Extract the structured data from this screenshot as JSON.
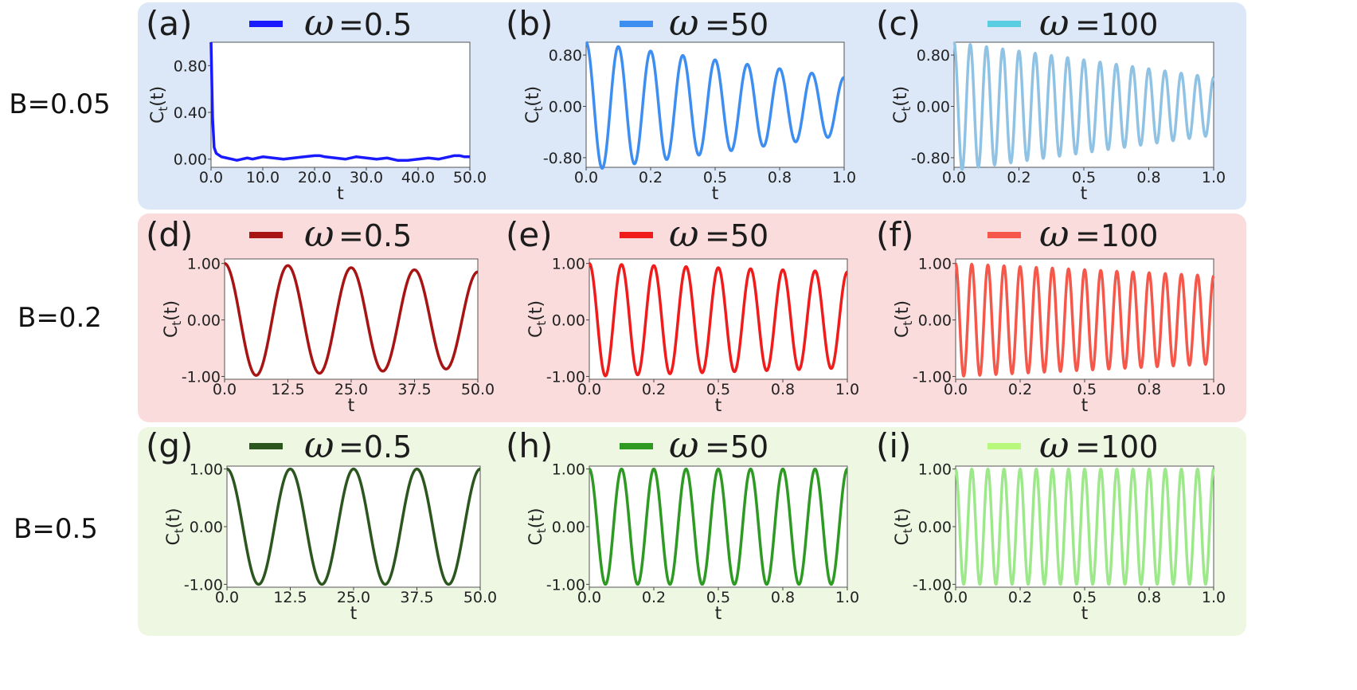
{
  "chart_data": [
    {
      "type": "line",
      "panel_label": "(a)",
      "row": 0,
      "col": 0,
      "legend_symbol": "ω",
      "legend_value": "=0.5",
      "ylabel": "C_t(t)",
      "xlabel": "t",
      "xlim": [
        0,
        50
      ],
      "ylim": [
        -0.07,
        1.0
      ],
      "xticks": [
        "0.0",
        "10.0",
        "20.0",
        "30.0",
        "40.0",
        "50.0"
      ],
      "yticks": [
        "0.00",
        "0.40",
        "0.80"
      ],
      "series": [
        {
          "color": "#1a1aff",
          "x": [
            0,
            0.3,
            0.6,
            1,
            2,
            3,
            4,
            5,
            6,
            7,
            8,
            9,
            10,
            12,
            14,
            16,
            18,
            20,
            21,
            22,
            24,
            26,
            28,
            30,
            32,
            34,
            36,
            38,
            40,
            42,
            44,
            46,
            47,
            48,
            49,
            50
          ],
          "y": [
            1.0,
            0.35,
            0.1,
            0.05,
            0.02,
            0.01,
            0.0,
            -0.01,
            0.0,
            0.01,
            0.0,
            0.01,
            0.02,
            0.01,
            0.0,
            0.01,
            0.02,
            0.03,
            0.03,
            0.02,
            0.01,
            0.0,
            0.02,
            0.01,
            0.0,
            0.01,
            -0.01,
            -0.01,
            0.0,
            0.01,
            0.0,
            0.02,
            0.03,
            0.03,
            0.02,
            0.02
          ]
        }
      ]
    },
    {
      "type": "line",
      "panel_label": "(b)",
      "row": 0,
      "col": 1,
      "legend_symbol": "ω",
      "legend_value": "=50",
      "ylabel": "C_t(t)",
      "xlabel": "t",
      "xlim": [
        0,
        1
      ],
      "ylim": [
        -0.95,
        1.0
      ],
      "xticks": [
        "0.0",
        "0.2",
        "0.5",
        "0.8",
        "1.0"
      ],
      "yticks": [
        "-0.80",
        "0.00",
        "0.80"
      ],
      "series": [
        {
          "color": "#3d8ef0",
          "frequency": 8,
          "amp_start": 1.0,
          "amp_end": 0.45,
          "offset": 0
        }
      ]
    },
    {
      "type": "line",
      "panel_label": "(c)",
      "row": 0,
      "col": 2,
      "legend_symbol": "ω",
      "legend_value": "=100",
      "ylabel": "C_t(t)",
      "xlabel": "t",
      "xlim": [
        0,
        1
      ],
      "ylim": [
        -0.95,
        1.0
      ],
      "xticks": [
        "0.0",
        "0.2",
        "0.5",
        "0.8",
        "1.0"
      ],
      "yticks": [
        "-0.80",
        "0.00",
        "0.80"
      ],
      "series": [
        {
          "color": "#90c2e4",
          "legend_color": "#5bcde0",
          "frequency": 16,
          "amp_start": 1.0,
          "amp_end": 0.45,
          "offset": 0
        }
      ]
    },
    {
      "type": "line",
      "panel_label": "(d)",
      "row": 1,
      "col": 0,
      "legend_symbol": "ω",
      "legend_value": "=0.5",
      "ylabel": "C_t(t)",
      "xlabel": "t",
      "xlim": [
        0,
        50
      ],
      "ylim": [
        -1.05,
        1.08
      ],
      "xticks": [
        "0.0",
        "12.5",
        "25.0",
        "37.5",
        "50.0"
      ],
      "yticks": [
        "-1.00",
        "0.00",
        "1.00"
      ],
      "series": [
        {
          "color": "#a81414",
          "frequency": 0.08,
          "amp_start": 1.0,
          "amp_end": 0.85,
          "offset": 0
        }
      ]
    },
    {
      "type": "line",
      "panel_label": "(e)",
      "row": 1,
      "col": 1,
      "legend_symbol": "ω",
      "legend_value": "=50",
      "ylabel": "C_t(t)",
      "xlabel": "t",
      "xlim": [
        0,
        1
      ],
      "ylim": [
        -1.05,
        1.08
      ],
      "xticks": [
        "0.0",
        "0.2",
        "0.5",
        "0.8",
        "1.0"
      ],
      "yticks": [
        "-1.00",
        "0.00",
        "1.00"
      ],
      "series": [
        {
          "color": "#f01c1c",
          "frequency": 8,
          "amp_start": 1.0,
          "amp_end": 0.85,
          "offset": 0
        }
      ]
    },
    {
      "type": "line",
      "panel_label": "(f)",
      "row": 1,
      "col": 2,
      "legend_symbol": "ω",
      "legend_value": "=100",
      "ylabel": "C_t(t)",
      "xlabel": "t",
      "xlim": [
        0,
        1
      ],
      "ylim": [
        -1.05,
        1.08
      ],
      "xticks": [
        "0.0",
        "0.2",
        "0.5",
        "0.8",
        "1.0"
      ],
      "yticks": [
        "-1.00",
        "0.00",
        "1.00"
      ],
      "series": [
        {
          "color": "#f5584a",
          "frequency": 16,
          "amp_start": 1.0,
          "amp_end": 0.78,
          "offset": 0
        }
      ]
    },
    {
      "type": "line",
      "panel_label": "(g)",
      "row": 2,
      "col": 0,
      "legend_symbol": "ω",
      "legend_value": "=0.5",
      "ylabel": "C_t(t)",
      "xlabel": "t",
      "xlim": [
        0,
        50
      ],
      "ylim": [
        -1.05,
        1.05
      ],
      "xticks": [
        "0.0",
        "12.5",
        "25.0",
        "37.5",
        "50.0"
      ],
      "yticks": [
        "-1.00",
        "0.00",
        "1.00"
      ],
      "series": [
        {
          "color": "#2b571e",
          "frequency": 0.08,
          "amp_start": 1.0,
          "amp_end": 1.0,
          "offset": 0
        }
      ]
    },
    {
      "type": "line",
      "panel_label": "(h)",
      "row": 2,
      "col": 1,
      "legend_symbol": "ω",
      "legend_value": "=50",
      "ylabel": "C_t(t)",
      "xlabel": "t",
      "xlim": [
        0,
        1
      ],
      "ylim": [
        -1.05,
        1.05
      ],
      "xticks": [
        "0.0",
        "0.2",
        "0.5",
        "0.8",
        "1.0"
      ],
      "yticks": [
        "-1.00",
        "0.00",
        "1.00"
      ],
      "series": [
        {
          "color": "#2e9a23",
          "frequency": 8,
          "amp_start": 1.0,
          "amp_end": 1.0,
          "offset": 0
        }
      ]
    },
    {
      "type": "line",
      "panel_label": "(i)",
      "row": 2,
      "col": 2,
      "legend_symbol": "ω",
      "legend_value": "=100",
      "ylabel": "C_t(t)",
      "xlabel": "t",
      "xlim": [
        0,
        1
      ],
      "ylim": [
        -1.05,
        1.05
      ],
      "xticks": [
        "0.0",
        "0.2",
        "0.5",
        "0.8",
        "1.0"
      ],
      "yticks": [
        "-1.00",
        "0.00",
        "1.00"
      ],
      "series": [
        {
          "color": "#9de88a",
          "legend_color": "#b8f87a",
          "frequency": 16,
          "amp_start": 1.0,
          "amp_end": 1.0,
          "offset": 0
        }
      ]
    }
  ],
  "rows": [
    {
      "label": "B=0.05",
      "background": "#dce8f8"
    },
    {
      "label": "B=0.2",
      "background": "#fadcdc"
    },
    {
      "label": "B=0.5",
      "background": "#eef7e2"
    }
  ]
}
